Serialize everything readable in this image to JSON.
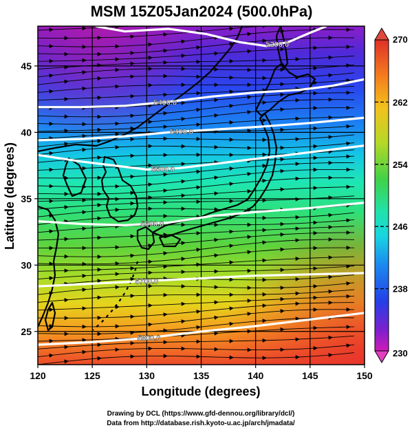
{
  "title": "MSM 15Z05Jan2024 (500.0hPa)",
  "map": {
    "x_axis": {
      "label": "Longitude (degrees)",
      "range": [
        120,
        150
      ],
      "ticks": [
        "120",
        "125",
        "130",
        "135",
        "140",
        "145",
        "150"
      ]
    },
    "y_axis": {
      "label": "Latitude (degrees)",
      "range": [
        22.5,
        48
      ],
      "ticks": [
        "25",
        "30",
        "35",
        "40",
        "45"
      ]
    },
    "contours": [
      {
        "label": "5200.0",
        "label_lon": 142.0,
        "points": [
          [
            125.3,
            48.0
          ],
          [
            128.0,
            47.6
          ],
          [
            132.0,
            47.8
          ],
          [
            135.5,
            47.4
          ],
          [
            138.5,
            46.8
          ],
          [
            141.0,
            46.5
          ],
          [
            143.0,
            46.8
          ],
          [
            145.0,
            47.5
          ],
          [
            146.5,
            48.0
          ]
        ]
      },
      {
        "label": "5400.0",
        "label_lon": 131.7,
        "points": [
          [
            120.0,
            41.9
          ],
          [
            124.0,
            41.9
          ],
          [
            128.0,
            42.0
          ],
          [
            132.0,
            42.3
          ],
          [
            136.0,
            42.7
          ],
          [
            140.0,
            43.0
          ],
          [
            144.0,
            43.2
          ],
          [
            147.0,
            43.5
          ],
          [
            150.0,
            44.0
          ]
        ]
      },
      {
        "label": "5400.0",
        "label_lon": 133.2,
        "points": [
          [
            120.0,
            39.4
          ],
          [
            124.0,
            39.5
          ],
          [
            128.0,
            39.7
          ],
          [
            132.0,
            40.0
          ],
          [
            136.0,
            40.2
          ],
          [
            140.0,
            40.4
          ],
          [
            145.0,
            40.7
          ],
          [
            150.0,
            41.1
          ]
        ]
      },
      {
        "label": "5500.0",
        "label_lon": 131.5,
        "points": [
          [
            120.0,
            38.3
          ],
          [
            124.0,
            37.8
          ],
          [
            127.0,
            37.5
          ],
          [
            130.0,
            37.2
          ],
          [
            133.0,
            37.3
          ],
          [
            137.0,
            37.7
          ],
          [
            140.0,
            38.0
          ],
          [
            145.0,
            38.5
          ],
          [
            150.0,
            39.0
          ]
        ]
      },
      {
        "label": "5600.0",
        "label_lon": 130.5,
        "points": [
          [
            120.0,
            33.3
          ],
          [
            124.0,
            33.1
          ],
          [
            128.0,
            33.0
          ],
          [
            132.0,
            33.2
          ],
          [
            136.0,
            33.7
          ],
          [
            140.0,
            34.0
          ],
          [
            145.0,
            34.3
          ],
          [
            150.0,
            34.7
          ]
        ]
      },
      {
        "label": "5700.0",
        "label_lon": 130.0,
        "points": [
          [
            120.0,
            28.4
          ],
          [
            125.0,
            28.6
          ],
          [
            130.0,
            28.8
          ],
          [
            135.0,
            29.0
          ],
          [
            140.0,
            29.2
          ],
          [
            145.0,
            29.3
          ],
          [
            150.0,
            29.4
          ]
        ]
      },
      {
        "label": "5800.0",
        "label_lon": 130.2,
        "points": [
          [
            120.0,
            24.0
          ],
          [
            125.0,
            24.2
          ],
          [
            130.0,
            24.5
          ],
          [
            135.0,
            25.0
          ],
          [
            140.0,
            25.4
          ],
          [
            145.0,
            25.9
          ],
          [
            150.0,
            26.4
          ]
        ]
      }
    ],
    "wind": {
      "direction_deg": 80
    }
  },
  "colorbar": {
    "label_top": "270",
    "label_bottom": "230",
    "tick_values": [
      "262",
      "254",
      "246",
      "238"
    ],
    "min": 230,
    "max": 270
  },
  "credits": {
    "line1": "Drawing by DCL (https://www.gfd-dennou.org/library/dcl/)",
    "line2": "Data from http://database.rish.kyoto-u.ac.jp/arch/jmadata/"
  }
}
